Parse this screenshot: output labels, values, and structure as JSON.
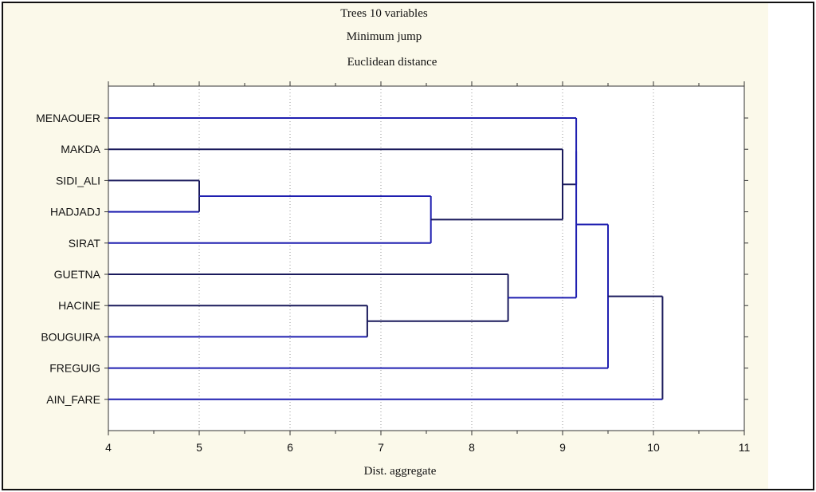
{
  "chart_data": {
    "type": "dendrogram",
    "title_lines": [
      "Trees 10 variables",
      "Minimum jump",
      "Euclidean distance"
    ],
    "xlabel": "Dist. aggregate",
    "xlim": [
      4,
      11
    ],
    "xticks": [
      "4",
      "5",
      "6",
      "7",
      "8",
      "9",
      "10",
      "11"
    ],
    "grid": "vertical dotted",
    "leaves": [
      "MENAOUER",
      "MAKDA",
      "SIDI_ALI",
      "HADJADJ",
      "SIRAT",
      "GUETNA",
      "HACINE",
      "BOUGUIRA",
      "FREGUIG",
      "AIN_FARE"
    ],
    "merges": [
      {
        "members": [
          "SIDI_ALI",
          "HADJADJ"
        ],
        "height": 5.0
      },
      {
        "members": [
          "HACINE",
          "BOUGUIRA"
        ],
        "height": 6.85
      },
      {
        "members": [
          "SIDI_ALI+HADJADJ",
          "SIRAT"
        ],
        "height": 7.55
      },
      {
        "members": [
          "GUETNA",
          "HACINE+BOUGUIRA"
        ],
        "height": 8.4
      },
      {
        "members": [
          "MAKDA",
          "SIDI_ALI+HADJADJ+SIRAT"
        ],
        "height": 9.0
      },
      {
        "members": [
          "MENAOUER",
          "MAKDA+SIDI_ALI+HADJADJ+SIRAT"
        ],
        "height": 9.15
      },
      {
        "members": [
          "MENAOUER+MAKDA+SIDI_ALI+HADJADJ+SIRAT",
          "GUETNA+HACINE+BOUGUIRA"
        ],
        "height": 9.15
      },
      {
        "members": [
          "MENAOUER..BOUGUIRA",
          "FREGUIG"
        ],
        "height": 9.5
      },
      {
        "members": [
          "MENAOUER..FREGUIG",
          "AIN_FARE"
        ],
        "height": 10.1
      }
    ],
    "line_colors": {
      "blue": "#1f1fb0",
      "navy": "#1a1a5c"
    }
  }
}
